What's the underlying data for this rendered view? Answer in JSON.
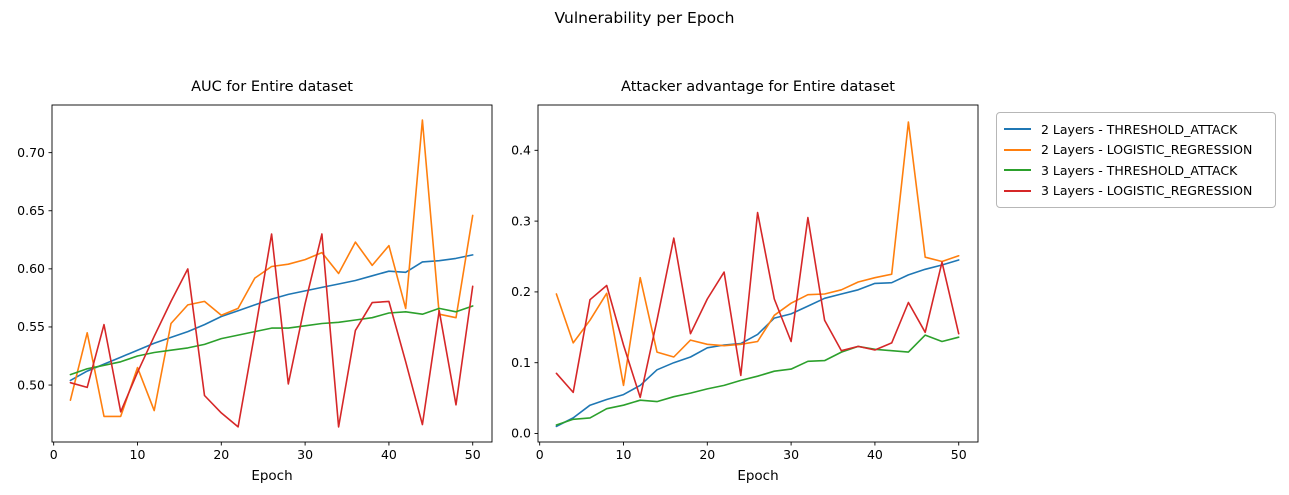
{
  "suptitle": "Vulnerability per Epoch",
  "colors": {
    "series_blue": "#1f77b4",
    "series_orange": "#ff7f0e",
    "series_green": "#2ca02c",
    "series_red": "#d62728",
    "axis": "#000000",
    "legend_border": "#b7b7b7",
    "background": "#ffffff"
  },
  "legend": {
    "entries": [
      {
        "label": "2 Layers - THRESHOLD_ATTACK",
        "color": "#1f77b4"
      },
      {
        "label": "2 Layers - LOGISTIC_REGRESSION",
        "color": "#ff7f0e"
      },
      {
        "label": "3 Layers - THRESHOLD_ATTACK",
        "color": "#2ca02c"
      },
      {
        "label": "3 Layers - LOGISTIC_REGRESSION",
        "color": "#d62728"
      }
    ]
  },
  "chart_data": [
    {
      "type": "line",
      "title": "AUC for Entire dataset",
      "xlabel": "Epoch",
      "ylabel": "",
      "x": [
        2,
        4,
        6,
        8,
        10,
        12,
        14,
        16,
        18,
        20,
        22,
        24,
        26,
        28,
        30,
        32,
        34,
        36,
        38,
        40,
        42,
        44,
        46,
        48,
        50
      ],
      "xlim": [
        -0.2,
        52.3
      ],
      "ylim": [
        0.451,
        0.741
      ],
      "xticks": [
        0,
        10,
        20,
        30,
        40,
        50
      ],
      "xtick_labels": [
        "0",
        "10",
        "20",
        "30",
        "40",
        "50"
      ],
      "yticks": [
        0.5,
        0.55,
        0.6,
        0.65,
        0.7
      ],
      "ytick_labels": [
        "0.50",
        "0.55",
        "0.60",
        "0.65",
        "0.70"
      ],
      "grid": false,
      "series": [
        {
          "name": "2 Layers - THRESHOLD_ATTACK",
          "color": "#1f77b4",
          "values": [
            0.504,
            0.512,
            0.518,
            0.524,
            0.53,
            0.536,
            0.541,
            0.546,
            0.552,
            0.559,
            0.564,
            0.569,
            0.574,
            0.578,
            0.581,
            0.584,
            0.587,
            0.59,
            0.594,
            0.598,
            0.597,
            0.606,
            0.607,
            0.609,
            0.612
          ]
        },
        {
          "name": "2 Layers - LOGISTIC_REGRESSION",
          "color": "#ff7f0e",
          "values": [
            0.487,
            0.545,
            0.473,
            0.473,
            0.515,
            0.478,
            0.553,
            0.569,
            0.572,
            0.56,
            0.566,
            0.592,
            0.602,
            0.604,
            0.608,
            0.614,
            0.596,
            0.623,
            0.603,
            0.62,
            0.566,
            0.728,
            0.561,
            0.558,
            0.646
          ]
        },
        {
          "name": "3 Layers - THRESHOLD_ATTACK",
          "color": "#2ca02c",
          "values": [
            0.509,
            0.514,
            0.517,
            0.52,
            0.525,
            0.528,
            0.53,
            0.532,
            0.535,
            0.54,
            0.543,
            0.546,
            0.549,
            0.549,
            0.551,
            0.553,
            0.554,
            0.556,
            0.558,
            0.562,
            0.563,
            0.561,
            0.566,
            0.563,
            0.568
          ]
        },
        {
          "name": "3 Layers - LOGISTIC_REGRESSION",
          "color": "#d62728",
          "values": [
            0.502,
            0.498,
            0.552,
            0.477,
            0.511,
            0.542,
            0.572,
            0.6,
            0.491,
            0.476,
            0.464,
            0.545,
            0.63,
            0.501,
            0.57,
            0.63,
            0.464,
            0.547,
            0.571,
            0.572,
            0.52,
            0.466,
            0.564,
            0.483,
            0.585
          ]
        }
      ]
    },
    {
      "type": "line",
      "title": "Attacker advantage for Entire dataset",
      "xlabel": "Epoch",
      "ylabel": "",
      "x": [
        2,
        4,
        6,
        8,
        10,
        12,
        14,
        16,
        18,
        20,
        22,
        24,
        26,
        28,
        30,
        32,
        34,
        36,
        38,
        40,
        42,
        44,
        46,
        48,
        50
      ],
      "xlim": [
        -0.2,
        52.3
      ],
      "ylim": [
        -0.012,
        0.464
      ],
      "xticks": [
        0,
        10,
        20,
        30,
        40,
        50
      ],
      "xtick_labels": [
        "0",
        "10",
        "20",
        "30",
        "40",
        "50"
      ],
      "yticks": [
        0.0,
        0.1,
        0.2,
        0.3,
        0.4
      ],
      "ytick_labels": [
        "0.0",
        "0.1",
        "0.2",
        "0.3",
        "0.4"
      ],
      "grid": false,
      "series": [
        {
          "name": "2 Layers - THRESHOLD_ATTACK",
          "color": "#1f77b4",
          "values": [
            0.01,
            0.022,
            0.04,
            0.048,
            0.055,
            0.068,
            0.09,
            0.1,
            0.108,
            0.121,
            0.125,
            0.127,
            0.14,
            0.163,
            0.169,
            0.18,
            0.191,
            0.197,
            0.203,
            0.212,
            0.213,
            0.224,
            0.232,
            0.238,
            0.245
          ]
        },
        {
          "name": "2 Layers - LOGISTIC_REGRESSION",
          "color": "#ff7f0e",
          "values": [
            0.197,
            0.128,
            0.16,
            0.198,
            0.068,
            0.22,
            0.115,
            0.108,
            0.132,
            0.126,
            0.124,
            0.126,
            0.13,
            0.167,
            0.184,
            0.196,
            0.197,
            0.203,
            0.214,
            0.22,
            0.225,
            0.44,
            0.249,
            0.243,
            0.251
          ]
        },
        {
          "name": "3 Layers - THRESHOLD_ATTACK",
          "color": "#2ca02c",
          "values": [
            0.012,
            0.02,
            0.022,
            0.035,
            0.04,
            0.047,
            0.045,
            0.052,
            0.057,
            0.063,
            0.068,
            0.075,
            0.081,
            0.088,
            0.091,
            0.102,
            0.103,
            0.115,
            0.123,
            0.119,
            0.117,
            0.115,
            0.139,
            0.13,
            0.136
          ]
        },
        {
          "name": "3 Layers - LOGISTIC_REGRESSION",
          "color": "#d62728",
          "values": [
            0.085,
            0.058,
            0.189,
            0.209,
            0.125,
            0.051,
            0.16,
            0.276,
            0.141,
            0.19,
            0.228,
            0.082,
            0.312,
            0.19,
            0.13,
            0.305,
            0.16,
            0.117,
            0.123,
            0.118,
            0.128,
            0.185,
            0.143,
            0.242,
            0.141
          ]
        }
      ]
    }
  ]
}
